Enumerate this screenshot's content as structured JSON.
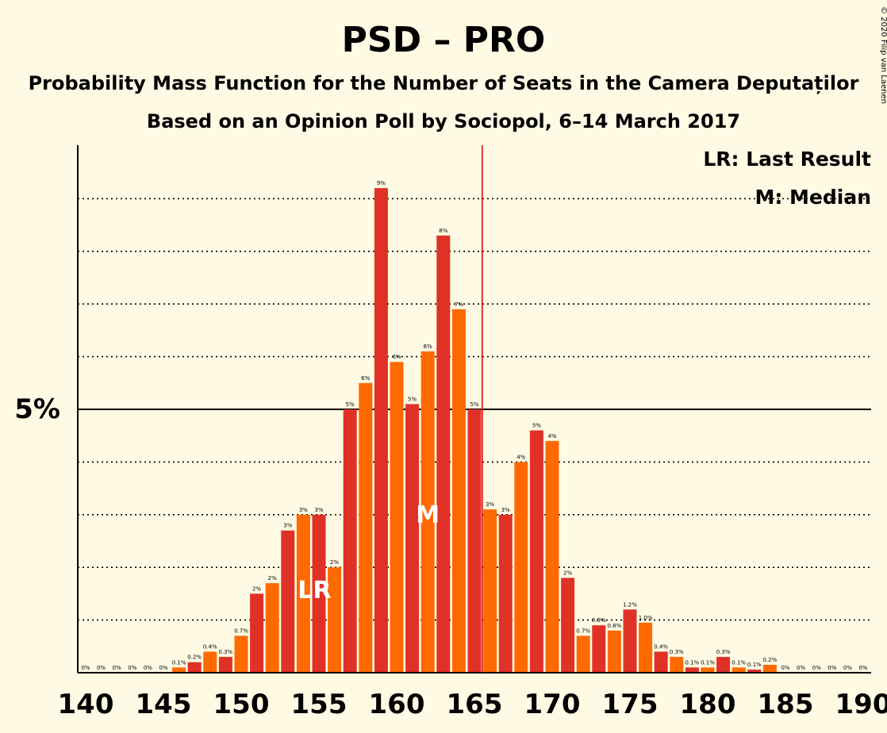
{
  "chart_data": {
    "type": "bar",
    "title": "PSD – PRO",
    "subtitle": "Probability Mass Function for the Number of Seats in the Camera Deputaților",
    "subtitle2": "Based on an Opinion Poll by Sociopol, 6–14 March 2017",
    "copyright": "© 2020 Filip van Laenen",
    "legend": {
      "lr": "LR: Last Result",
      "m": "M: Median",
      "placement": "top-right"
    },
    "x_ticks": [
      "140",
      "145",
      "150",
      "155",
      "160",
      "165",
      "170",
      "175",
      "180",
      "185",
      "190"
    ],
    "y_tick_label": "5%",
    "ylim": [
      0,
      10
    ],
    "last_result_seat": 154,
    "median_seat": 162,
    "majority_line_seat": 165.5,
    "colors": {
      "odd": "#E03127",
      "even": "#FF6A00",
      "majority_line": "#E00000"
    },
    "seats": [
      140,
      141,
      142,
      143,
      144,
      145,
      146,
      147,
      148,
      149,
      150,
      151,
      152,
      153,
      154,
      155,
      156,
      157,
      158,
      159,
      160,
      161,
      162,
      163,
      164,
      165,
      166,
      167,
      168,
      169,
      170,
      171,
      172,
      173,
      174,
      175,
      176,
      177,
      178,
      179,
      180,
      181,
      182,
      183,
      184,
      185,
      186,
      187,
      188,
      189,
      190
    ],
    "values": [
      0,
      0,
      0,
      0,
      0,
      0,
      0.1,
      0.2,
      0.4,
      0.3,
      0.7,
      1.5,
      1.7,
      2.7,
      3.0,
      3.0,
      2.0,
      5.0,
      5.5,
      9.2,
      5.9,
      5.1,
      6.1,
      8.3,
      6.9,
      5.0,
      3.1,
      3.0,
      4.0,
      4.6,
      4.4,
      1.8,
      0.7,
      0.9,
      0.8,
      1.2,
      0.95,
      0.4,
      0.3,
      0.1,
      0.1,
      0.3,
      0.1,
      0.06,
      0.15,
      0,
      0,
      0,
      0,
      0,
      0
    ],
    "labels": [
      "0%",
      "0%",
      "0%",
      "0%",
      "0%",
      "0%",
      "0.1%",
      "0.2%",
      "0.4%",
      "0.3%",
      "0.7%",
      "2%",
      "2%",
      "3%",
      "3%",
      "3%",
      "2%",
      "5%",
      "6%",
      "9%",
      "6%",
      "5%",
      "6%",
      "8%",
      "7%",
      "5%",
      "3%",
      "3%",
      "4%",
      "5%",
      "4%",
      "2%",
      "0.7%",
      "0.9%",
      "0.8%",
      "1.2%",
      "1.0%",
      "0.4%",
      "0.3%",
      "0.1%",
      "0.1%",
      "0.3%",
      "0.1%",
      "0.1%",
      "0.2%",
      "0%",
      "0%",
      "0%",
      "0%",
      "0%",
      "0%"
    ]
  }
}
